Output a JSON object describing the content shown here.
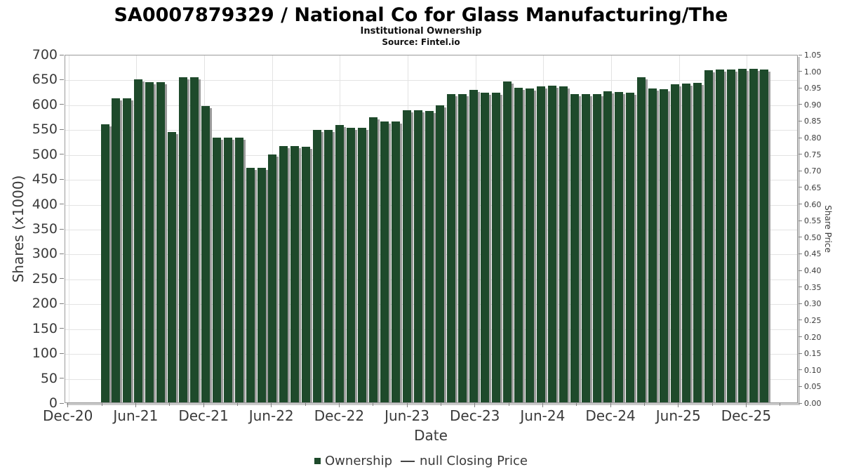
{
  "title": "SA0007879329 / National Co for Glass Manufacturing/The",
  "subtitle": "Institutional Ownership",
  "source": "Source: Fintel.io",
  "axes": {
    "left_label": "Shares (x1000)",
    "right_label": "Share Price",
    "x_label": "Date",
    "left_ticks": [
      0,
      50,
      100,
      150,
      200,
      250,
      300,
      350,
      400,
      450,
      500,
      550,
      600,
      650,
      700
    ],
    "right_ticks": [
      "0.00",
      "0.05",
      "0.10",
      "0.15",
      "0.20",
      "0.25",
      "0.30",
      "0.35",
      "0.40",
      "0.45",
      "0.50",
      "0.55",
      "0.60",
      "0.65",
      "0.70",
      "0.75",
      "0.80",
      "0.85",
      "0.90",
      "0.95",
      "1.00",
      "1.05"
    ],
    "x_ticks": [
      "Dec-20",
      "Jun-21",
      "Dec-21",
      "Jun-22",
      "Dec-22",
      "Jun-23",
      "Dec-23",
      "Jun-24",
      "Dec-24",
      "Jun-25",
      "Dec-25"
    ]
  },
  "legend": {
    "ownership_label": "Ownership",
    "price_label": "null Closing Price"
  },
  "colors": {
    "bar": "#1e4a2b",
    "bar_shadow": "#9b9b9b",
    "grid": "#e3e3e3",
    "spine": "#9a9a9a",
    "text": "#3a3a3a"
  },
  "chart_data": {
    "type": "bar",
    "title": "SA0007879329 / National Co for Glass Manufacturing/The — Institutional Ownership",
    "xlabel": "Date",
    "ylabel": "Shares (x1000)",
    "ylabel_right": "Share Price",
    "ylim": [
      0,
      700
    ],
    "ylim_right": [
      0,
      1.05
    ],
    "grid": true,
    "legend_position": "bottom",
    "series": [
      {
        "name": "Ownership",
        "categories": [
          "Mar-21",
          "Apr-21",
          "May-21",
          "Jun-21",
          "Jul-21",
          "Aug-21",
          "Sep-21",
          "Oct-21",
          "Nov-21",
          "Dec-21",
          "Jan-22",
          "Feb-22",
          "Mar-22",
          "Apr-22",
          "May-22",
          "Jun-22",
          "Jul-22",
          "Aug-22",
          "Sep-22",
          "Oct-22",
          "Nov-22",
          "Dec-22",
          "Jan-23",
          "Feb-23",
          "Mar-23",
          "Apr-23",
          "May-23",
          "Jun-23",
          "Jul-23",
          "Aug-23",
          "Sep-23",
          "Oct-23",
          "Nov-23",
          "Dec-23",
          "Jan-24",
          "Feb-24",
          "Mar-24",
          "Apr-24",
          "May-24",
          "Jun-24",
          "Jul-24",
          "Aug-24",
          "Sep-24",
          "Oct-24",
          "Nov-24",
          "Dec-24",
          "Jan-25",
          "Feb-25",
          "Mar-25",
          "Apr-25",
          "May-25",
          "Jun-25",
          "Jul-25",
          "Aug-25",
          "Sep-25",
          "Oct-25",
          "Nov-25",
          "Dec-25",
          "Jan-26",
          "Feb-26"
        ],
        "values": [
          559,
          611,
          611,
          649,
          643,
          643,
          543,
          653,
          653,
          596,
          532,
          532,
          532,
          472,
          472,
          498,
          515,
          515,
          514,
          547,
          548,
          558,
          552,
          552,
          573,
          565,
          565,
          587,
          587,
          586,
          597,
          620,
          620,
          628,
          623,
          623,
          645,
          632,
          631,
          635,
          636,
          635,
          620,
          620,
          620,
          625,
          624,
          623,
          653,
          631,
          630,
          640,
          641,
          642,
          667,
          669,
          669,
          670,
          670,
          669
        ]
      },
      {
        "name": "null Closing Price",
        "values": []
      }
    ]
  }
}
